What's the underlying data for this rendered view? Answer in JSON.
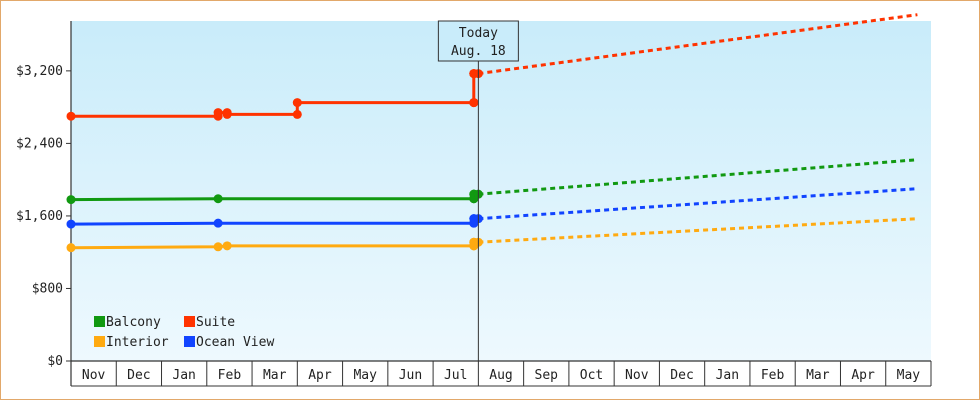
{
  "chart_data": {
    "type": "line",
    "title": "",
    "xlabel": "",
    "ylabel": "",
    "y_ticks": [
      "$0",
      "$800",
      "$1,600",
      "$2,400",
      "$3,200"
    ],
    "y_tick_values": [
      0,
      800,
      1600,
      2400,
      3200
    ],
    "ylim": [
      0,
      3750
    ],
    "x_months": [
      "Nov",
      "Dec",
      "Jan",
      "Feb",
      "Mar",
      "Apr",
      "May",
      "Jun",
      "Jul",
      "Aug",
      "Sep",
      "Oct",
      "Nov",
      "Dec",
      "Jan",
      "Feb",
      "Mar",
      "Apr",
      "May"
    ],
    "today_label": "Today",
    "today_date": "Aug. 18",
    "today_index": 9.0,
    "legend": {
      "placement": "bottom-left",
      "entries": [
        {
          "name": "Balcony",
          "color": "#119911"
        },
        {
          "name": "Suite",
          "color": "#ff3300"
        },
        {
          "name": "Interior",
          "color": "#ffaa11"
        },
        {
          "name": "Ocean View",
          "color": "#1144ff"
        }
      ]
    },
    "series": [
      {
        "name": "Balcony",
        "color": "#119911",
        "history": [
          [
            0,
            1780
          ],
          [
            3.25,
            1790
          ],
          [
            8.9,
            1790
          ],
          [
            8.9,
            1840
          ],
          [
            9.0,
            1840
          ]
        ],
        "forecast": [
          [
            9.0,
            1840
          ],
          [
            18.7,
            2220
          ]
        ]
      },
      {
        "name": "Suite",
        "color": "#ff3300",
        "history": [
          [
            0,
            2700
          ],
          [
            3.25,
            2700
          ],
          [
            3.25,
            2740
          ],
          [
            3.45,
            2740
          ],
          [
            3.45,
            2720
          ],
          [
            5.0,
            2720
          ],
          [
            5.0,
            2850
          ],
          [
            8.9,
            2850
          ],
          [
            8.9,
            3170
          ],
          [
            9.0,
            3170
          ]
        ],
        "forecast": [
          [
            9.0,
            3170
          ],
          [
            18.7,
            3820
          ]
        ]
      },
      {
        "name": "Interior",
        "color": "#ffaa11",
        "history": [
          [
            0,
            1250
          ],
          [
            3.25,
            1260
          ],
          [
            3.45,
            1270
          ],
          [
            8.9,
            1270
          ],
          [
            8.9,
            1310
          ],
          [
            9.0,
            1310
          ]
        ],
        "forecast": [
          [
            9.0,
            1310
          ],
          [
            18.7,
            1570
          ]
        ]
      },
      {
        "name": "Ocean View",
        "color": "#1144ff",
        "history": [
          [
            0,
            1510
          ],
          [
            3.25,
            1520
          ],
          [
            8.9,
            1520
          ],
          [
            8.9,
            1570
          ],
          [
            9.0,
            1570
          ]
        ],
        "forecast": [
          [
            9.0,
            1570
          ],
          [
            18.7,
            1900
          ]
        ]
      }
    ],
    "markers": [
      {
        "series": "Balcony",
        "x": [
          0,
          3.25,
          8.9,
          8.9,
          9.0
        ]
      },
      {
        "series": "Suite",
        "x": [
          0,
          3.25,
          3.45,
          5.0,
          8.9,
          8.9,
          8.9,
          9.0
        ]
      },
      {
        "series": "Interior",
        "x": [
          0,
          3.25,
          3.45,
          8.9,
          8.9,
          9.0
        ]
      },
      {
        "series": "Ocean View",
        "x": [
          0,
          3.25,
          8.9,
          8.9,
          9.0
        ]
      }
    ]
  }
}
